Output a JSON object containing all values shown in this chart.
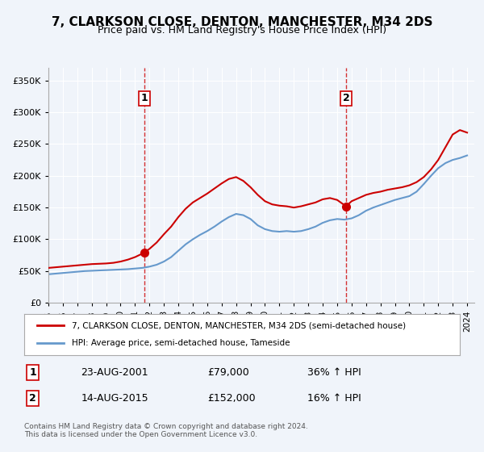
{
  "title": "7, CLARKSON CLOSE, DENTON, MANCHESTER, M34 2DS",
  "subtitle": "Price paid vs. HM Land Registry's House Price Index (HPI)",
  "title_fontsize": 11,
  "subtitle_fontsize": 9,
  "bg_color": "#f0f4fa",
  "plot_bg_color": "#f0f4fa",
  "grid_color": "#ffffff",
  "red_color": "#cc0000",
  "blue_color": "#6699cc",
  "marker_color_red": "#cc0000",
  "marker_color_blue": "#6699cc",
  "xlabel": "",
  "ylabel": "",
  "ylim": [
    0,
    370000
  ],
  "yticks": [
    0,
    50000,
    100000,
    150000,
    200000,
    250000,
    300000,
    350000
  ],
  "ytick_labels": [
    "£0",
    "£50K",
    "£100K",
    "£150K",
    "£200K",
    "£250K",
    "£300K",
    "£350K"
  ],
  "sale1_date": 2001.644,
  "sale1_price": 79000,
  "sale1_label": "1",
  "sale2_date": 2015.617,
  "sale2_price": 152000,
  "sale2_label": "2",
  "legend_line1": "7, CLARKSON CLOSE, DENTON, MANCHESTER, M34 2DS (semi-detached house)",
  "legend_line2": "HPI: Average price, semi-detached house, Tameside",
  "table_row1_num": "1",
  "table_row1_date": "23-AUG-2001",
  "table_row1_price": "£79,000",
  "table_row1_hpi": "36% ↑ HPI",
  "table_row2_num": "2",
  "table_row2_date": "14-AUG-2015",
  "table_row2_price": "£152,000",
  "table_row2_hpi": "16% ↑ HPI",
  "footer": "Contains HM Land Registry data © Crown copyright and database right 2024.\nThis data is licensed under the Open Government Licence v3.0.",
  "xmin": 1995.0,
  "xmax": 2024.5,
  "red_x": [
    1995.0,
    1995.5,
    1996.0,
    1996.5,
    1997.0,
    1997.5,
    1998.0,
    1998.5,
    1999.0,
    1999.5,
    2000.0,
    2000.5,
    2001.0,
    2001.644,
    2002.0,
    2002.5,
    2003.0,
    2003.5,
    2004.0,
    2004.5,
    2005.0,
    2005.5,
    2006.0,
    2006.5,
    2007.0,
    2007.5,
    2008.0,
    2008.5,
    2009.0,
    2009.5,
    2010.0,
    2010.5,
    2011.0,
    2011.5,
    2012.0,
    2012.5,
    2013.0,
    2013.5,
    2014.0,
    2014.5,
    2015.0,
    2015.617,
    2016.0,
    2016.5,
    2017.0,
    2017.5,
    2018.0,
    2018.5,
    2019.0,
    2019.5,
    2020.0,
    2020.5,
    2021.0,
    2021.5,
    2022.0,
    2022.5,
    2023.0,
    2023.5,
    2024.0
  ],
  "red_y": [
    55000,
    56000,
    57000,
    58000,
    59000,
    60000,
    61000,
    61500,
    62000,
    63000,
    65000,
    68000,
    72000,
    79000,
    85000,
    95000,
    108000,
    120000,
    135000,
    148000,
    158000,
    165000,
    172000,
    180000,
    188000,
    195000,
    198000,
    192000,
    182000,
    170000,
    160000,
    155000,
    153000,
    152000,
    150000,
    152000,
    155000,
    158000,
    163000,
    165000,
    162000,
    152000,
    160000,
    165000,
    170000,
    173000,
    175000,
    178000,
    180000,
    182000,
    185000,
    190000,
    198000,
    210000,
    225000,
    245000,
    265000,
    272000,
    268000
  ],
  "blue_x": [
    1995.0,
    1995.5,
    1996.0,
    1996.5,
    1997.0,
    1997.5,
    1998.0,
    1998.5,
    1999.0,
    1999.5,
    2000.0,
    2000.5,
    2001.0,
    2001.5,
    2002.0,
    2002.5,
    2003.0,
    2003.5,
    2004.0,
    2004.5,
    2005.0,
    2005.5,
    2006.0,
    2006.5,
    2007.0,
    2007.5,
    2008.0,
    2008.5,
    2009.0,
    2009.5,
    2010.0,
    2010.5,
    2011.0,
    2011.5,
    2012.0,
    2012.5,
    2013.0,
    2013.5,
    2014.0,
    2014.5,
    2015.0,
    2015.5,
    2016.0,
    2016.5,
    2017.0,
    2017.5,
    2018.0,
    2018.5,
    2019.0,
    2019.5,
    2020.0,
    2020.5,
    2021.0,
    2021.5,
    2022.0,
    2022.5,
    2023.0,
    2023.5,
    2024.0
  ],
  "blue_y": [
    45000,
    46000,
    47000,
    48000,
    49000,
    50000,
    50500,
    51000,
    51500,
    52000,
    52500,
    53000,
    54000,
    55000,
    57000,
    60000,
    65000,
    72000,
    82000,
    92000,
    100000,
    107000,
    113000,
    120000,
    128000,
    135000,
    140000,
    138000,
    132000,
    122000,
    116000,
    113000,
    112000,
    113000,
    112000,
    113000,
    116000,
    120000,
    126000,
    130000,
    132000,
    131000,
    133000,
    138000,
    145000,
    150000,
    154000,
    158000,
    162000,
    165000,
    168000,
    175000,
    187000,
    200000,
    212000,
    220000,
    225000,
    228000,
    232000
  ]
}
